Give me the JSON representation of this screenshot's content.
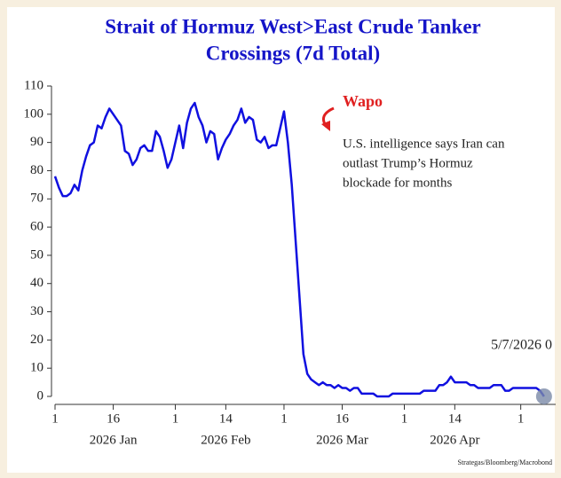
{
  "chart_data": {
    "type": "line",
    "title_lines": [
      "Strait of Hormuz West>East Crude Tanker",
      "Crossings (7d Total)"
    ],
    "x": [
      "2026-01-01",
      "2026-01-02",
      "2026-01-03",
      "2026-01-04",
      "2026-01-05",
      "2026-01-06",
      "2026-01-07",
      "2026-01-08",
      "2026-01-09",
      "2026-01-10",
      "2026-01-11",
      "2026-01-12",
      "2026-01-13",
      "2026-01-14",
      "2026-01-15",
      "2026-01-16",
      "2026-01-17",
      "2026-01-18",
      "2026-01-19",
      "2026-01-20",
      "2026-01-21",
      "2026-01-22",
      "2026-01-23",
      "2026-01-24",
      "2026-01-25",
      "2026-01-26",
      "2026-01-27",
      "2026-01-28",
      "2026-01-29",
      "2026-01-30",
      "2026-01-31",
      "2026-02-01",
      "2026-02-02",
      "2026-02-03",
      "2026-02-04",
      "2026-02-05",
      "2026-02-06",
      "2026-02-07",
      "2026-02-08",
      "2026-02-09",
      "2026-02-10",
      "2026-02-11",
      "2026-02-12",
      "2026-02-13",
      "2026-02-14",
      "2026-02-15",
      "2026-02-16",
      "2026-02-17",
      "2026-02-18",
      "2026-02-19",
      "2026-02-20",
      "2026-02-21",
      "2026-02-22",
      "2026-02-23",
      "2026-02-24",
      "2026-02-25",
      "2026-02-26",
      "2026-02-27",
      "2026-02-28",
      "2026-03-01",
      "2026-03-02",
      "2026-03-03",
      "2026-03-04",
      "2026-03-05",
      "2026-03-06",
      "2026-03-07",
      "2026-03-08",
      "2026-03-09",
      "2026-03-10",
      "2026-03-11",
      "2026-03-12",
      "2026-03-13",
      "2026-03-14",
      "2026-03-15",
      "2026-03-16",
      "2026-03-17",
      "2026-03-18",
      "2026-03-19",
      "2026-03-20",
      "2026-03-21",
      "2026-03-22",
      "2026-03-23",
      "2026-03-24",
      "2026-03-25",
      "2026-03-26",
      "2026-03-27",
      "2026-03-28",
      "2026-03-29",
      "2026-03-30",
      "2026-03-31",
      "2026-04-01",
      "2026-04-02",
      "2026-04-03",
      "2026-04-04",
      "2026-04-05",
      "2026-04-06",
      "2026-04-07",
      "2026-04-08",
      "2026-04-09",
      "2026-04-10",
      "2026-04-11",
      "2026-04-12",
      "2026-04-13",
      "2026-04-14",
      "2026-04-15",
      "2026-04-16",
      "2026-04-17",
      "2026-04-18",
      "2026-04-19",
      "2026-04-20",
      "2026-04-21",
      "2026-04-22",
      "2026-04-23",
      "2026-04-24",
      "2026-04-25",
      "2026-04-26",
      "2026-04-27",
      "2026-04-28",
      "2026-04-29",
      "2026-04-30",
      "2026-05-01",
      "2026-05-02",
      "2026-05-03",
      "2026-05-04",
      "2026-05-05",
      "2026-05-06",
      "2026-05-07"
    ],
    "series": [
      {
        "color": "#1010e0",
        "values": [
          78,
          74,
          71,
          71,
          72,
          75,
          73,
          80,
          85,
          89,
          90,
          96,
          95,
          99,
          102,
          100,
          98,
          96,
          87,
          86,
          82,
          84,
          88,
          89,
          87,
          87,
          94,
          92,
          87,
          81,
          84,
          90,
          96,
          88,
          97,
          102,
          104,
          99,
          96,
          90,
          94,
          93,
          84,
          88,
          91,
          93,
          96,
          98,
          102,
          97,
          99,
          98,
          91,
          90,
          92,
          88,
          89,
          89,
          95,
          101,
          90,
          75,
          55,
          35,
          15,
          8,
          6,
          5,
          4,
          5,
          4,
          4,
          3,
          4,
          3,
          3,
          2,
          3,
          3,
          1,
          1,
          1,
          1,
          0,
          0,
          0,
          0,
          1,
          1,
          1,
          1,
          1,
          1,
          1,
          1,
          2,
          2,
          2,
          2,
          4,
          4,
          5,
          7,
          5,
          5,
          5,
          5,
          4,
          4,
          3,
          3,
          3,
          3,
          4,
          4,
          4,
          2,
          2,
          3,
          3,
          3,
          3,
          3,
          3,
          3,
          2,
          0
        ]
      }
    ],
    "xlim": [
      "2026-01-01",
      "2026-05-10"
    ],
    "xticks": [
      {
        "value": "2026-01-01",
        "label": "1"
      },
      {
        "value": "2026-01-16",
        "label": "16"
      },
      {
        "value": "2026-02-01",
        "label": "1"
      },
      {
        "value": "2026-02-14",
        "label": "14"
      },
      {
        "value": "2026-03-01",
        "label": "1"
      },
      {
        "value": "2026-03-16",
        "label": "16"
      },
      {
        "value": "2026-04-01",
        "label": "1"
      },
      {
        "value": "2026-04-14",
        "label": "14"
      },
      {
        "value": "2026-05-01",
        "label": "1"
      }
    ],
    "month_labels": [
      {
        "value": "2026-01-16",
        "label": "2026 Jan"
      },
      {
        "value": "2026-02-14",
        "label": "2026 Feb"
      },
      {
        "value": "2026-03-16",
        "label": "2026 Mar"
      },
      {
        "value": "2026-04-14",
        "label": "2026 Apr"
      }
    ],
    "ylim": [
      0,
      110
    ],
    "yticks": [
      0,
      10,
      20,
      30,
      40,
      50,
      60,
      70,
      80,
      90,
      100,
      110
    ],
    "annotation_title": "Wapo",
    "annotation_lines": [
      "U.S. intelligence says Iran can",
      "outlast Trump’s Hormuz",
      "blockade for months"
    ],
    "last_label": "5/7/2026 0",
    "source": "Strategas/Bloomberg/Macrobond"
  }
}
